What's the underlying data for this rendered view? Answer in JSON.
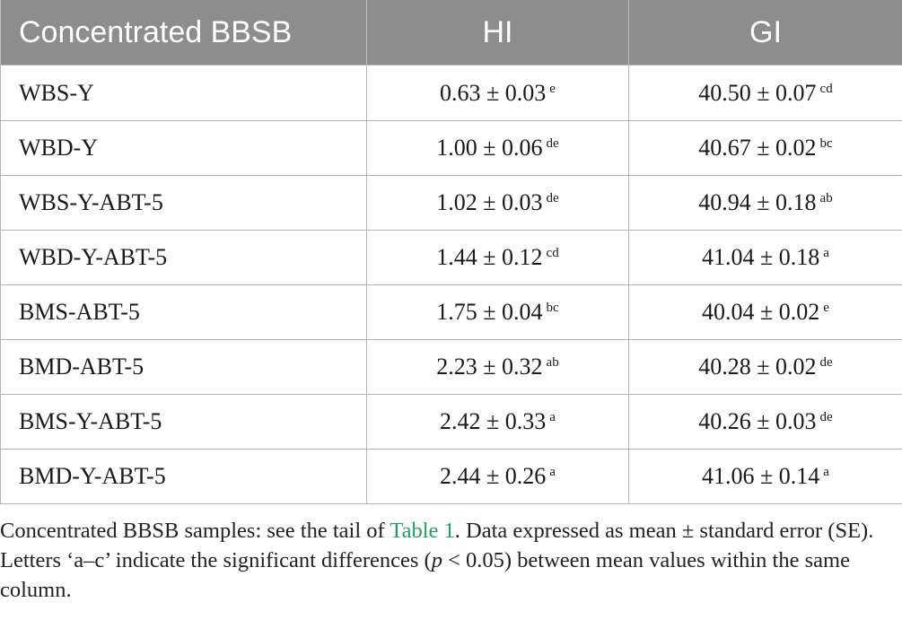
{
  "table": {
    "headers": [
      "Concentrated BBSB",
      "HI",
      "GI"
    ],
    "rows": [
      {
        "sample": "WBS-Y",
        "hi": "0.63 ± 0.03",
        "hi_letter": "e",
        "gi": "40.50 ± 0.07",
        "gi_letter": "cd"
      },
      {
        "sample": "WBD-Y",
        "hi": "1.00 ± 0.06",
        "hi_letter": "de",
        "gi": "40.67 ± 0.02",
        "gi_letter": "bc"
      },
      {
        "sample": "WBS-Y-ABT-5",
        "hi": "1.02 ± 0.03",
        "hi_letter": "de",
        "gi": "40.94 ± 0.18",
        "gi_letter": "ab"
      },
      {
        "sample": "WBD-Y-ABT-5",
        "hi": "1.44 ± 0.12",
        "hi_letter": "cd",
        "gi": "41.04 ± 0.18",
        "gi_letter": "a"
      },
      {
        "sample": "BMS-ABT-5",
        "hi": "1.75 ± 0.04",
        "hi_letter": "bc",
        "gi": "40.04 ± 0.02",
        "gi_letter": "e"
      },
      {
        "sample": "BMD-ABT-5",
        "hi": "2.23 ± 0.32",
        "hi_letter": "ab",
        "gi": "40.28 ± 0.02",
        "gi_letter": "de"
      },
      {
        "sample": "BMS-Y-ABT-5",
        "hi": "2.42 ± 0.33",
        "hi_letter": "a",
        "gi": "40.26 ± 0.03",
        "gi_letter": "de"
      },
      {
        "sample": "BMD-Y-ABT-5",
        "hi": "2.44 ± 0.26",
        "hi_letter": "a",
        "gi": "41.06 ± 0.14",
        "gi_letter": "a"
      }
    ]
  },
  "footnote": {
    "part1": "Concentrated BBSB samples: see the tail of ",
    "link": "Table 1",
    "part2": ". Data expressed as mean ± standard error (SE). Letters ‘a–c’ indicate the significant differences (",
    "p_symbol": "p",
    "part3": " < 0.05) between mean values within the same column."
  },
  "colors": {
    "header_bg": "#8d8d8d",
    "header_text": "#ffffff",
    "link": "#2a9a6a"
  }
}
